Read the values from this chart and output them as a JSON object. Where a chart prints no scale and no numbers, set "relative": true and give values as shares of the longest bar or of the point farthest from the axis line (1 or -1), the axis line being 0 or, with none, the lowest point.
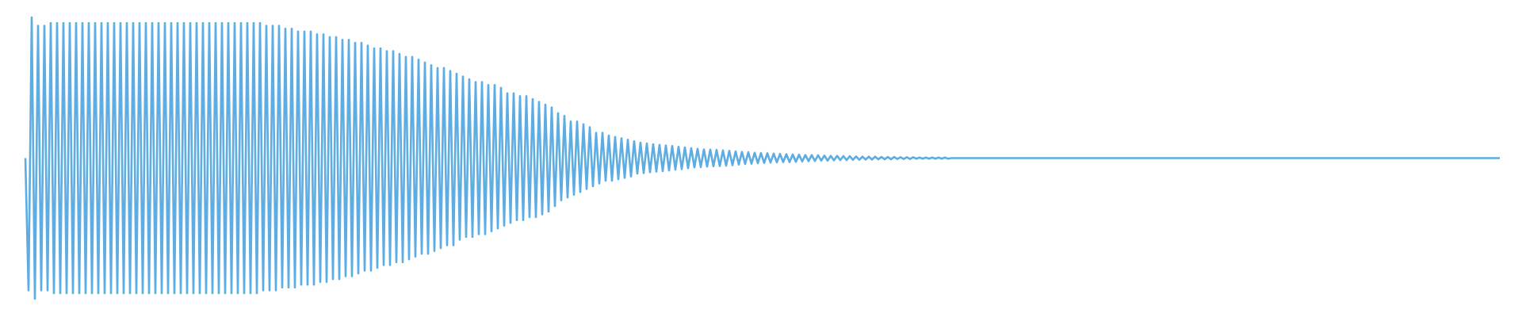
{
  "chart_data": {
    "type": "line",
    "relative": true,
    "tick_labels": false,
    "color": "#5dade2",
    "categories": [
      null,
      null,
      null,
      null,
      null,
      null,
      null,
      null,
      null,
      null,
      null,
      null,
      null,
      null,
      null,
      null,
      null,
      null,
      null,
      null,
      null,
      null,
      null,
      null,
      null,
      null,
      null,
      null,
      null,
      null,
      null,
      null,
      null,
      null,
      null,
      null,
      null,
      null,
      null,
      null,
      null,
      null,
      null,
      null,
      null,
      null,
      null,
      null,
      null,
      null,
      null,
      null,
      null,
      null,
      null,
      null,
      null,
      null,
      null,
      null,
      null,
      null,
      null,
      null,
      null,
      null,
      null,
      null,
      null,
      null,
      null,
      null,
      null,
      null,
      null,
      null,
      null,
      null,
      null,
      null,
      null,
      null,
      null,
      null,
      null,
      null,
      null,
      null,
      null,
      null,
      null,
      null,
      null,
      null,
      null,
      null,
      null,
      null,
      null,
      null,
      null,
      null,
      null,
      null,
      null,
      null,
      null,
      null,
      null,
      null,
      null,
      null,
      null,
      null,
      null,
      null,
      null,
      null,
      null,
      null,
      null,
      null,
      null,
      null,
      null,
      null,
      null,
      null,
      null,
      null,
      null,
      null,
      null,
      null,
      null,
      null,
      null,
      null,
      null,
      null,
      null,
      null,
      null,
      null,
      null,
      null,
      null,
      null,
      null,
      null,
      null,
      null,
      null,
      null,
      null,
      null,
      null,
      null,
      null,
      null,
      null,
      null,
      null,
      null,
      null,
      null,
      null,
      null,
      null,
      null,
      null,
      null,
      null,
      null,
      null,
      null,
      null,
      null,
      null,
      null,
      null,
      null,
      null,
      null,
      null,
      null,
      null,
      null,
      null,
      null,
      null,
      null,
      null,
      null,
      null,
      null,
      null,
      null,
      null,
      null,
      null,
      null,
      null,
      null,
      null,
      null,
      null,
      null,
      null,
      null,
      null,
      null,
      null,
      null,
      null,
      null,
      null,
      null,
      null,
      null,
      null,
      null,
      null,
      null,
      null,
      null,
      null,
      null,
      null,
      null,
      null,
      null,
      null,
      null,
      null,
      null,
      null,
      null,
      null,
      null,
      null,
      null,
      null,
      null,
      null,
      null,
      null,
      null,
      null,
      null,
      null,
      null,
      null,
      null,
      null,
      null,
      null,
      null,
      null,
      null,
      null,
      null,
      null,
      null,
      null,
      null,
      null,
      null,
      null,
      null,
      null,
      null,
      null,
      null,
      null,
      null,
      null,
      null,
      null,
      null,
      null,
      null,
      null,
      null,
      null,
      null,
      null,
      null,
      null,
      null,
      null,
      null,
      null,
      null,
      null,
      null,
      null,
      null,
      null,
      null,
      null,
      null,
      null,
      null,
      null,
      null,
      null,
      null,
      null,
      null,
      null,
      null,
      null,
      null,
      null,
      null,
      null,
      null,
      null,
      null,
      null,
      null,
      null,
      null,
      null,
      null,
      null,
      null,
      null,
      null,
      null,
      null,
      null,
      null,
      null,
      null,
      null,
      null,
      null,
      null,
      null,
      null,
      null,
      null,
      null,
      null,
      null,
      null,
      null,
      null,
      null,
      null,
      null,
      null,
      null,
      null,
      null,
      null,
      null,
      null,
      null,
      null,
      null,
      null,
      null,
      null,
      null,
      null,
      null,
      null,
      null,
      null,
      null,
      null,
      null,
      null,
      null,
      null,
      null,
      null,
      null,
      null,
      null,
      null,
      null,
      null,
      null,
      null,
      null,
      null,
      null,
      null,
      null,
      null,
      null,
      null,
      null,
      null,
      null,
      null,
      null,
      null,
      null,
      null,
      null,
      null,
      null,
      null,
      null,
      null,
      null,
      null,
      null,
      null,
      null,
      null,
      null,
      null,
      null,
      null,
      null,
      null,
      null,
      null,
      null,
      null,
      null,
      null,
      null,
      null,
      null,
      null,
      null,
      null,
      null,
      null,
      null,
      null,
      null,
      null,
      null,
      null,
      null,
      null,
      null,
      null,
      null,
      null,
      null,
      null,
      null,
      null,
      null,
      null,
      null,
      null,
      null,
      null,
      null,
      null,
      null,
      null,
      null,
      null,
      null,
      null
    ],
    "values": [
      0.5,
      0.03,
      1.0,
      0.0,
      0.97,
      0.03,
      0.97,
      0.03,
      0.98,
      0.02,
      0.98,
      0.02,
      0.98,
      0.02,
      0.98,
      0.02,
      0.98,
      0.02,
      0.98,
      0.02,
      0.98,
      0.02,
      0.98,
      0.02,
      0.98,
      0.02,
      0.98,
      0.02,
      0.98,
      0.02,
      0.98,
      0.02,
      0.98,
      0.02,
      0.98,
      0.02,
      0.98,
      0.02,
      0.98,
      0.02,
      0.98,
      0.02,
      0.98,
      0.02,
      0.98,
      0.02,
      0.98,
      0.02,
      0.98,
      0.02,
      0.98,
      0.02,
      0.98,
      0.02,
      0.98,
      0.02,
      0.98,
      0.02,
      0.98,
      0.02,
      0.98,
      0.02,
      0.98,
      0.02,
      0.98,
      0.02,
      0.98,
      0.02,
      0.98,
      0.02,
      0.98,
      0.02,
      0.98,
      0.02,
      0.98,
      0.03,
      0.97,
      0.03,
      0.97,
      0.03,
      0.97,
      0.04,
      0.96,
      0.04,
      0.96,
      0.04,
      0.95,
      0.05,
      0.95,
      0.05,
      0.95,
      0.05,
      0.94,
      0.06,
      0.94,
      0.06,
      0.93,
      0.07,
      0.93,
      0.07,
      0.92,
      0.08,
      0.92,
      0.08,
      0.91,
      0.09,
      0.91,
      0.1,
      0.9,
      0.1,
      0.89,
      0.11,
      0.89,
      0.12,
      0.88,
      0.12,
      0.88,
      0.13,
      0.87,
      0.13,
      0.86,
      0.14,
      0.86,
      0.15,
      0.85,
      0.16,
      0.84,
      0.16,
      0.83,
      0.17,
      0.82,
      0.18,
      0.82,
      0.19,
      0.81,
      0.19,
      0.8,
      0.21,
      0.79,
      0.22,
      0.78,
      0.22,
      0.77,
      0.23,
      0.77,
      0.23,
      0.76,
      0.24,
      0.76,
      0.25,
      0.75,
      0.26,
      0.73,
      0.27,
      0.73,
      0.28,
      0.72,
      0.28,
      0.72,
      0.29,
      0.71,
      0.29,
      0.7,
      0.3,
      0.69,
      0.31,
      0.68,
      0.33,
      0.66,
      0.35,
      0.65,
      0.36,
      0.63,
      0.37,
      0.63,
      0.38,
      0.62,
      0.39,
      0.61,
      0.4,
      0.59,
      0.41,
      0.59,
      0.42,
      0.58,
      0.42,
      0.575,
      0.425,
      0.57,
      0.43,
      0.565,
      0.435,
      0.56,
      0.445,
      0.555,
      0.447,
      0.552,
      0.45,
      0.549,
      0.452,
      0.547,
      0.454,
      0.545,
      0.456,
      0.543,
      0.459,
      0.54,
      0.461,
      0.538,
      0.464,
      0.535,
      0.467,
      0.533,
      0.468,
      0.531,
      0.47,
      0.53,
      0.471,
      0.529,
      0.472,
      0.527,
      0.473,
      0.526,
      0.475,
      0.524,
      0.477,
      0.522,
      0.479,
      0.521,
      0.48,
      0.519,
      0.482,
      0.518,
      0.483,
      0.517,
      0.484,
      0.516,
      0.485,
      0.515,
      0.486,
      0.514,
      0.486,
      0.513,
      0.487,
      0.512,
      0.488,
      0.511,
      0.489,
      0.511,
      0.49,
      0.51,
      0.491,
      0.509,
      0.491,
      0.508,
      0.492,
      0.508,
      0.493,
      0.507,
      0.493,
      0.507,
      0.494,
      0.506,
      0.494,
      0.505,
      0.495,
      0.505,
      0.495,
      0.505,
      0.496,
      0.504,
      0.496,
      0.504,
      0.496,
      0.504,
      0.497,
      0.503,
      0.497,
      0.503,
      0.497,
      0.503,
      0.498,
      0.502,
      0.498,
      0.502,
      0.498,
      0.502,
      0.498,
      0.502,
      0.498,
      0.502,
      0.498,
      0.5,
      0.5,
      0.5,
      0.5,
      0.5,
      0.5,
      0.5,
      0.5,
      0.5,
      0.5,
      0.5,
      0.5,
      0.5,
      0.5,
      0.5,
      0.5,
      0.5,
      0.5,
      0.5,
      0.5,
      0.5,
      0.5,
      0.5,
      0.5,
      0.5,
      0.5,
      0.5,
      0.5,
      0.5,
      0.5,
      0.5,
      0.5,
      0.5,
      0.5,
      0.5,
      0.5,
      0.5,
      0.5,
      0.5,
      0.5,
      0.5,
      0.5,
      0.5,
      0.5,
      0.5,
      0.5,
      0.5,
      0.5,
      0.5,
      0.5,
      0.5,
      0.5,
      0.5,
      0.5,
      0.5,
      0.5,
      0.5,
      0.5,
      0.5,
      0.5,
      0.5,
      0.5,
      0.5,
      0.5,
      0.5,
      0.5,
      0.5,
      0.5,
      0.5,
      0.5,
      0.5,
      0.5,
      0.5,
      0.5,
      0.5,
      0.5,
      0.5,
      0.5,
      0.5,
      0.5,
      0.5,
      0.5,
      0.5,
      0.5,
      0.5,
      0.5,
      0.5,
      0.5,
      0.5,
      0.5,
      0.5,
      0.5,
      0.5,
      0.5,
      0.5,
      0.5,
      0.5,
      0.5,
      0.5,
      0.5,
      0.5,
      0.5,
      0.5,
      0.5,
      0.5,
      0.5,
      0.5,
      0.5,
      0.5,
      0.5,
      0.5,
      0.5,
      0.5,
      0.5,
      0.5,
      0.5,
      0.5,
      0.5,
      0.5,
      0.5,
      0.5,
      0.5,
      0.5,
      0.5,
      0.5,
      0.5,
      0.5,
      0.5,
      0.5,
      0.5,
      0.5,
      0.5,
      0.5,
      0.5,
      0.5,
      0.5,
      0.5,
      0.5,
      0.5,
      0.5,
      0.5,
      0.5,
      0.5,
      0.5,
      0.5,
      0.5,
      0.5,
      0.5,
      0.5,
      0.5,
      0.5,
      0.5,
      0.5,
      0.5,
      0.5,
      0.5,
      0.5,
      0.5,
      0.5,
      0.5,
      0.5,
      0.5,
      0.5,
      0.5,
      0.5,
      0.5,
      0.5,
      0.5,
      0.5,
      0.5,
      0.5,
      0.5,
      0.5,
      0.5
    ]
  }
}
